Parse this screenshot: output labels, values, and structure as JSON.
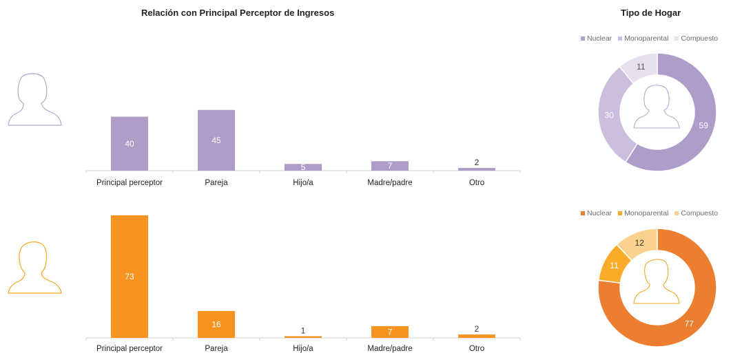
{
  "bar_title": "Relación con Principal Perceptor de Ingresos",
  "donut_title": "Tipo de Hogar",
  "colors": {
    "purple": "#ae9cc9",
    "purple_mid": "#cbbfdd",
    "purple_light": "#e6e0ef",
    "orange": "#f7931e",
    "orange_dark": "#ec7f2f",
    "orange_mid": "#f9ac2a",
    "orange_light": "#fbd28d",
    "icon_purple": "#b3a7cf",
    "icon_orange": "#f5a623"
  },
  "icons": [
    "woman-silhouette-icon",
    "man-silhouette-icon"
  ],
  "chart_data": [
    {
      "type": "bar",
      "group": "female",
      "categories": [
        "Principal perceptor",
        "Pareja",
        "Hijo/a",
        "Madre/padre",
        "Otro"
      ],
      "values": [
        40,
        45,
        5,
        7,
        2
      ],
      "data_labels": [
        "40",
        "45",
        "5",
        "7",
        "2"
      ],
      "ylim": [
        0,
        75
      ]
    },
    {
      "type": "bar",
      "group": "male",
      "categories": [
        "Principal perceptor",
        "Pareja",
        "Hijo/a",
        "Madre/padre",
        "Otro"
      ],
      "values": [
        73,
        16,
        1,
        7,
        2
      ],
      "data_labels": [
        "73",
        "16",
        "1",
        "7",
        "2"
      ],
      "ylim": [
        0,
        75
      ]
    },
    {
      "type": "pie",
      "group": "female",
      "legend": [
        "Nuclear",
        "Monoparental",
        "Compuesto"
      ],
      "values": [
        59,
        30,
        11
      ],
      "data_labels": [
        "59",
        "30",
        "11"
      ]
    },
    {
      "type": "pie",
      "group": "male",
      "legend": [
        "Nuclear",
        "Monoparental",
        "Compuesto"
      ],
      "values": [
        77,
        11,
        12
      ],
      "data_labels": [
        "77",
        "11",
        "12"
      ]
    }
  ]
}
